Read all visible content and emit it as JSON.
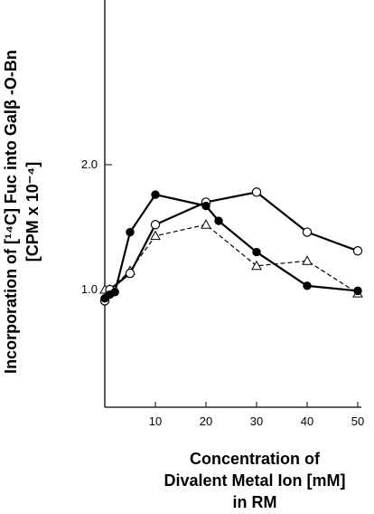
{
  "chart_data": {
    "type": "line",
    "x_ticks": [
      "10",
      "20",
      "30",
      "40",
      "50"
    ],
    "y_ticks": [
      "1.0",
      "2.0"
    ],
    "xlim": [
      0,
      55
    ],
    "ylim": [
      0.0,
      3.3
    ],
    "ylabel_line1": "Incorporation of  [¹⁴C] Fuc into Galβ -O-Bn",
    "ylabel_line2": "[CPM x 10⁻⁴]",
    "xlabel_line1": "Concentration of",
    "xlabel_line2": "Divalent Metal Ion [mM]",
    "xlabel_line3": "in RM",
    "series": [
      {
        "marker": "filled-circle",
        "line": "solid",
        "x": [
          0,
          1,
          2,
          5,
          10,
          20,
          22.5,
          30,
          40,
          50
        ],
        "y": [
          0.93,
          0.96,
          0.98,
          1.46,
          1.76,
          1.67,
          1.55,
          1.3,
          1.03,
          0.99
        ]
      },
      {
        "marker": "open-circle",
        "line": "solid",
        "x": [
          0,
          1,
          5,
          10,
          20,
          30,
          40,
          50
        ],
        "y": [
          0.91,
          1.0,
          1.13,
          1.52,
          1.7,
          1.78,
          1.46,
          1.31
        ]
      },
      {
        "marker": "open-triangle",
        "line": "dashed",
        "x": [
          0,
          1,
          5,
          10,
          20,
          30,
          40,
          50
        ],
        "y": [
          1.0,
          1.0,
          1.15,
          1.43,
          1.52,
          1.19,
          1.23,
          0.97
        ]
      }
    ]
  }
}
